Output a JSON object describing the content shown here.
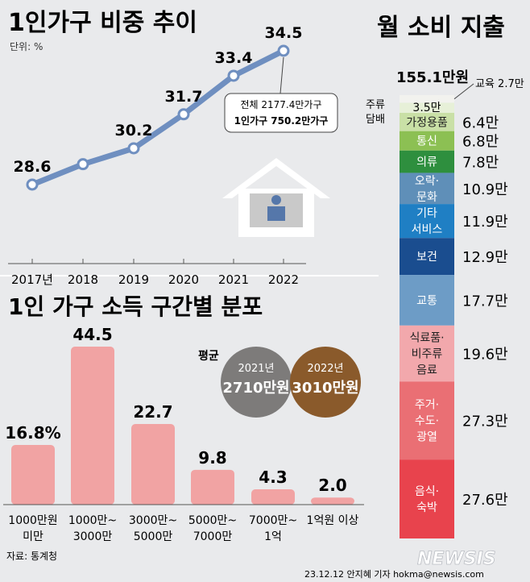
{
  "trend": {
    "title": "1인가구 비중 추이",
    "unit": "단위: %",
    "x": [
      "2017년",
      "2018",
      "2019",
      "2020",
      "2021",
      "2022"
    ],
    "y": [
      28.6,
      null,
      30.2,
      31.7,
      33.4,
      34.5
    ],
    "y_labels": [
      "28.6",
      "",
      "30.2",
      "31.7",
      "33.4",
      "34.5"
    ],
    "callout": [
      "전체 2177.4만가구",
      "1인가구 750.2만가구"
    ]
  },
  "income": {
    "title": "1인 가구 소득 구간별 분포",
    "categories": [
      [
        "1000만원",
        "미만"
      ],
      [
        "1000만~",
        "3000만"
      ],
      [
        "3000만~",
        "5000만"
      ],
      [
        "5000만~",
        "7000만"
      ],
      [
        "7000만~",
        "1억"
      ],
      [
        "1억원 이상"
      ]
    ],
    "values": [
      16.8,
      44.5,
      22.7,
      9.8,
      4.3,
      2.0
    ],
    "value_labels": [
      "16.8%",
      "44.5",
      "22.7",
      "9.8",
      "4.3",
      "2.0"
    ],
    "average": {
      "label": "평균",
      "items": [
        {
          "year": "2021년",
          "value": "2710만원",
          "color": "#7d7b7a"
        },
        {
          "year": "2022년",
          "value": "3010만원",
          "color": "#8a5a2b"
        }
      ]
    }
  },
  "spending": {
    "title": "월 소비 지출",
    "total": "155.1만원",
    "segments": [
      {
        "label": "교육",
        "value_label": "2.7만",
        "value": 2.7,
        "color": "#f2f2ee"
      },
      {
        "label": "주류·담배",
        "value_label": "3.5만",
        "value": 3.5,
        "color": "#e7f0d8"
      },
      {
        "label": "가정용품",
        "value_label": "6.4만",
        "value": 6.4,
        "color": "#c9e0a6"
      },
      {
        "label": "통신",
        "value_label": "6.8만",
        "value": 6.8,
        "color": "#8cc053"
      },
      {
        "label": "의류",
        "value_label": "7.8만",
        "value": 7.8,
        "color": "#2e8f3e"
      },
      {
        "label": "오락·문화",
        "value_label": "10.9만",
        "value": 10.9,
        "color": "#5f8fb8"
      },
      {
        "label": "기타 서비스",
        "value_label": "11.9만",
        "value": 11.9,
        "color": "#1f7fc4"
      },
      {
        "label": "보건",
        "value_label": "12.9만",
        "value": 12.9,
        "color": "#1a4d8f"
      },
      {
        "label": "교통",
        "value_label": "17.7만",
        "value": 17.7,
        "color": "#6d9cc6"
      },
      {
        "label": "식료품·비주류음료",
        "value_label": "19.6만",
        "value": 19.6,
        "color": "#f2a8ac"
      },
      {
        "label": "주거·수도·광열",
        "value_label": "27.3만",
        "value": 27.3,
        "color": "#ea6f74"
      },
      {
        "label": "음식·숙박",
        "value_label": "27.6만",
        "value": 27.6,
        "color": "#e8434d"
      }
    ]
  },
  "source": "자료: 통계청",
  "credit": "23.12.12 안지혜 기자 hokma@newsis.com",
  "logo": "NEWSIS",
  "colors": {
    "line": "#6f8fc0",
    "bar": "#f1a3a3",
    "text": "#222222"
  },
  "chart_data": [
    {
      "type": "line",
      "title": "1인가구 비중 추이",
      "x": [
        "2017년",
        "2018",
        "2019",
        "2020",
        "2021",
        "2022"
      ],
      "series": [
        {
          "values": [
            28.6,
            null,
            30.2,
            31.7,
            33.4,
            34.5
          ]
        }
      ],
      "ylabel": "단위: %",
      "grid": false
    },
    {
      "type": "bar",
      "title": "1인 가구 소득 구간별 분포",
      "categories": [
        "1000만원 미만",
        "1000만~3000만",
        "3000만~5000만",
        "5000만~7000만",
        "7000만~1억",
        "1억원 이상"
      ],
      "values": [
        16.8,
        44.5,
        22.7,
        9.8,
        4.3,
        2.0
      ],
      "ylim": [
        0,
        44.5
      ],
      "grid": false
    },
    {
      "type": "bar",
      "title": "월 소비 지출",
      "categories": [
        "교육",
        "주류·담배",
        "가정용품",
        "통신",
        "의류",
        "오락·문화",
        "기타 서비스",
        "보건",
        "교통",
        "식료품·비주류음료",
        "주거·수도·광열",
        "음식·숙박"
      ],
      "values": [
        2.7,
        3.5,
        6.4,
        6.8,
        7.8,
        10.9,
        11.9,
        12.9,
        17.7,
        19.6,
        27.3,
        27.6
      ],
      "stacked": true
    }
  ]
}
